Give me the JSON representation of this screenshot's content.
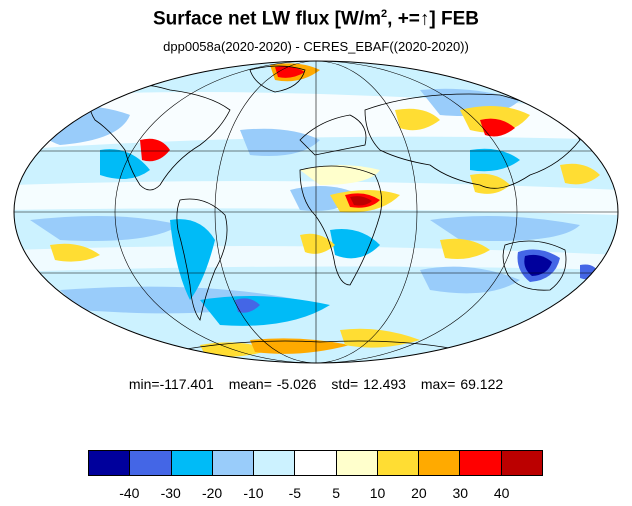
{
  "title": {
    "main": "Surface net LW flux [W/m",
    "superscript": "2",
    "after_superscript": ", +=",
    "arrow": "↑",
    "end": "]  FEB"
  },
  "subtitle": "dpp0058a(2020-2020) - CERES_EBAF((2020-2020))",
  "stats": {
    "min": "min=-117.401",
    "mean": "mean=  -5.026",
    "std": "std=  12.493",
    "max": "max=  69.122"
  },
  "colorbar": {
    "colors": [
      "#00009c",
      "#4466e6",
      "#00bbf7",
      "#99ccfa",
      "#ccf2ff",
      "#ffffff",
      "#ffffcc",
      "#ffdd33",
      "#ffaa00",
      "#ff0000",
      "#bb0000"
    ],
    "tick_labels": [
      "-40",
      "-30",
      "-20",
      "-10",
      "-5",
      "5",
      "10",
      "20",
      "30",
      "40"
    ]
  },
  "map": {
    "projection": "Mollweide",
    "ocean_background": "#ccf2ff",
    "grid": true
  }
}
